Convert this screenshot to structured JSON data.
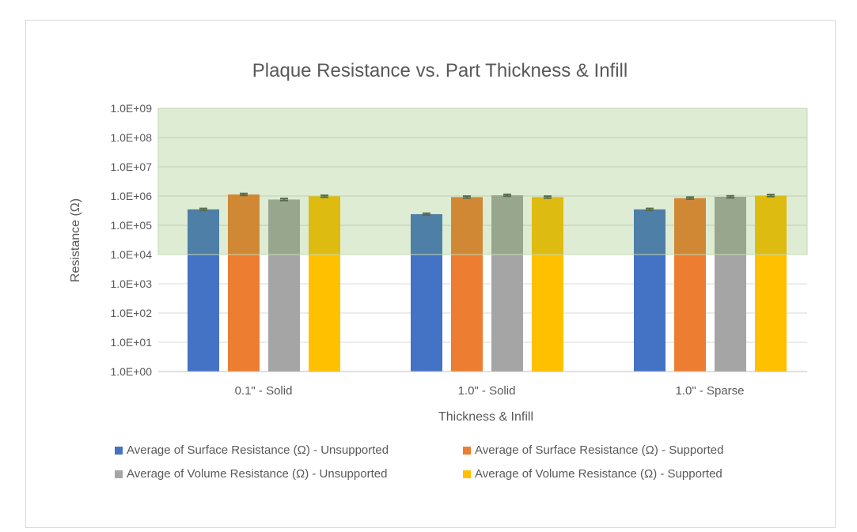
{
  "chart_data": {
    "type": "bar",
    "title": "Plaque Resistance vs. Part Thickness & Infill",
    "xlabel": "Thickness & Infill",
    "ylabel": "Resistance (Ω)",
    "yscale": "log",
    "ylim": [
      1,
      1000000000
    ],
    "yticks": [
      "1.0E+00",
      "1.0E+01",
      "1.0E+02",
      "1.0E+03",
      "1.0E+04",
      "1.0E+05",
      "1.0E+06",
      "1.0E+07",
      "1.0E+08",
      "1.0E+09"
    ],
    "grid": true,
    "legend_position": "bottom",
    "categories": [
      "0.1\" - Solid",
      "1.0\" - Solid",
      "1.0\" - Sparse"
    ],
    "shaded_band": {
      "from": 10000,
      "to": 1000000000,
      "color": "#70ad47"
    },
    "series": [
      {
        "name": "Average of Surface Resistance (Ω) - Unsupported",
        "color": "#4472c4",
        "values": [
          350000,
          240000,
          350000
        ]
      },
      {
        "name": "Average of Surface Resistance (Ω) - Supported",
        "color": "#ed7d31",
        "values": [
          1130000,
          920000,
          850000
        ]
      },
      {
        "name": "Average of Volume Resistance (Ω) - Unsupported",
        "color": "#a5a5a5",
        "values": [
          760000,
          1060000,
          940000
        ]
      },
      {
        "name": "Average of Volume Resistance (Ω) - Supported",
        "color": "#ffc000",
        "values": [
          980000,
          920000,
          1040000
        ]
      }
    ]
  }
}
